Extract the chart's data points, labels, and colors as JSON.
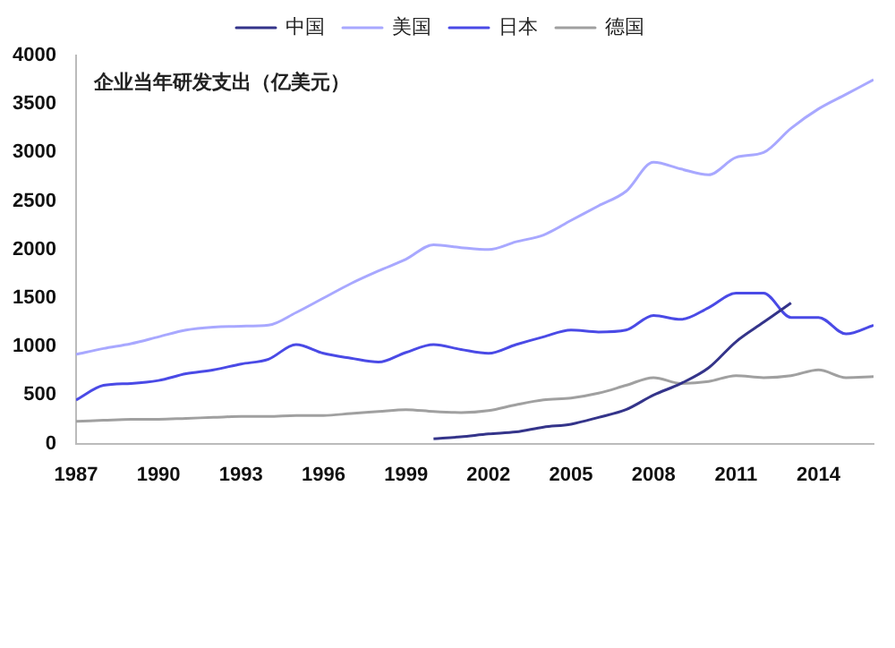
{
  "chart_data": {
    "type": "line",
    "annotations": [
      "企业当年研发支出（亿美元）"
    ],
    "x": [
      1987,
      1988,
      1989,
      1990,
      1991,
      1992,
      1993,
      1994,
      1995,
      1996,
      1997,
      1998,
      1999,
      2000,
      2001,
      2002,
      2003,
      2004,
      2005,
      2006,
      2007,
      2008,
      2009,
      2010,
      2011,
      2012,
      2013,
      2014,
      2015,
      2016
    ],
    "series": [
      {
        "name": "中国",
        "color": "#34348a",
        "values": [
          null,
          null,
          null,
          null,
          null,
          null,
          null,
          null,
          null,
          null,
          null,
          null,
          null,
          50,
          70,
          100,
          120,
          170,
          200,
          270,
          350,
          500,
          620,
          780,
          1050,
          1250,
          1450,
          null,
          null,
          null
        ]
      },
      {
        "name": "美国",
        "color": "#a8a8ff",
        "values": [
          920,
          980,
          1030,
          1100,
          1170,
          1200,
          1210,
          1220,
          1350,
          1500,
          1650,
          1780,
          1900,
          2050,
          2020,
          2000,
          2080,
          2150,
          2300,
          2450,
          2600,
          2900,
          2830,
          2770,
          2950,
          3000,
          3250,
          3450,
          3600,
          3750
        ]
      },
      {
        "name": "日本",
        "color": "#4a4ae6",
        "values": [
          450,
          600,
          620,
          650,
          720,
          760,
          820,
          870,
          1020,
          930,
          880,
          840,
          940,
          1020,
          970,
          930,
          1020,
          1100,
          1170,
          1150,
          1170,
          1320,
          1280,
          1400,
          1550,
          1550,
          1300,
          1300,
          1130,
          1220
        ]
      },
      {
        "name": "德国",
        "color": "#a0a0a0",
        "values": [
          230,
          240,
          250,
          250,
          260,
          270,
          280,
          280,
          290,
          290,
          310,
          330,
          350,
          330,
          320,
          340,
          400,
          450,
          470,
          520,
          600,
          680,
          620,
          640,
          700,
          680,
          700,
          760,
          680,
          690
        ]
      }
    ],
    "xlim": [
      1987,
      2016
    ],
    "xticks": [
      1987,
      1990,
      1993,
      1996,
      1999,
      2002,
      2005,
      2008,
      2011,
      2014
    ],
    "ylim": [
      0,
      4000
    ],
    "yticks": [
      0,
      500,
      1000,
      1500,
      2000,
      2500,
      3000,
      3500,
      4000
    ],
    "grid": false,
    "legend": "top",
    "marker": "none",
    "line_style": "solid"
  }
}
